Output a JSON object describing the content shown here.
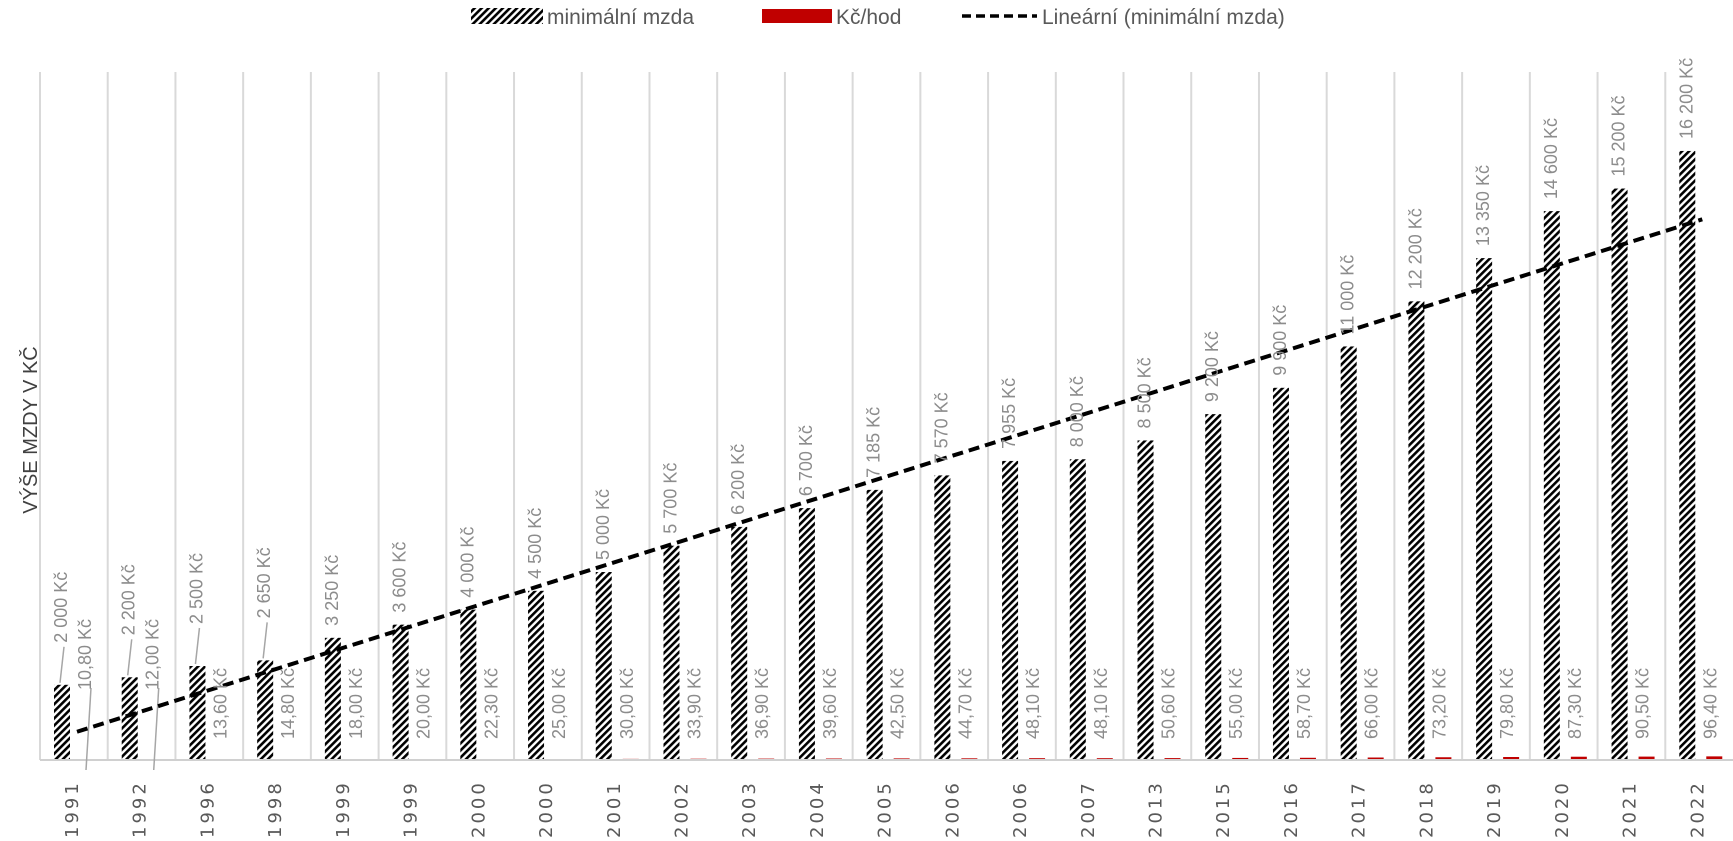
{
  "chart_data": {
    "type": "bar",
    "title": "",
    "xlabel": "",
    "ylabel": "VÝŠE MZDY V KČ",
    "categories": [
      "1991",
      "1992",
      "1996",
      "1998",
      "1999",
      "1999",
      "2000",
      "2000",
      "2001",
      "2002",
      "2003",
      "2004",
      "2005",
      "2006",
      "2006",
      "2007",
      "2013",
      "2015",
      "2016",
      "2017",
      "2018",
      "2019",
      "2020",
      "2021",
      "2022"
    ],
    "series": [
      {
        "name": "minimální mzda",
        "values": [
          2000,
          2200,
          2500,
          2650,
          3250,
          3600,
          4000,
          4500,
          5000,
          5700,
          6200,
          6700,
          7185,
          7570,
          7955,
          8000,
          8500,
          9200,
          9900,
          11000,
          12200,
          13350,
          14600,
          15200,
          16200
        ],
        "labels": [
          "2 000 Kč",
          "2 200 Kč",
          "2 500 Kč",
          "2 650 Kč",
          "3 250 Kč",
          "3 600 Kč",
          "4 000 Kč",
          "4 500 Kč",
          "5 000 Kč",
          "5 700 Kč",
          "6 200 Kč",
          "6 700 Kč",
          "7 185 Kč",
          "7 570 Kč",
          "7 955 Kč",
          "8 000 Kč",
          "8 500 Kč",
          "9 200 Kč",
          "9 900 Kč",
          "11 000 Kč",
          "12 200 Kč",
          "13 350 Kč",
          "14 600 Kč",
          "15 200 Kč",
          "16 200 Kč"
        ],
        "color": "#000000",
        "pattern": "diagonal-hatch"
      },
      {
        "name": "Kč/hod",
        "values": [
          10.8,
          12.0,
          13.6,
          14.8,
          18.0,
          20.0,
          22.3,
          25.0,
          30.0,
          33.9,
          36.9,
          39.6,
          42.5,
          44.7,
          48.1,
          48.1,
          50.6,
          55.0,
          58.7,
          66.0,
          73.2,
          79.8,
          87.3,
          90.5,
          96.4
        ],
        "labels": [
          "10,80 Kč",
          "12,00 Kč",
          "13,60 Kč",
          "14,80 Kč",
          "18,00 Kč",
          "20,00 Kč",
          "22,30 Kč",
          "25,00 Kč",
          "30,00 Kč",
          "33,90 Kč",
          "36,90 Kč",
          "39,60 Kč",
          "42,50 Kč",
          "44,70 Kč",
          "48,10 Kč",
          "48,10 Kč",
          "50,60 Kč",
          "55,00 Kč",
          "58,70 Kč",
          "66,00 Kč",
          "73,20 Kč",
          "79,80 Kč",
          "87,30 Kč",
          "90,50 Kč",
          "96,40 Kč"
        ],
        "color": "#c00000"
      }
    ],
    "trendline": {
      "name": "Lineární (minimální mzda)",
      "type": "linear",
      "of": "minimální mzda",
      "color": "#000000",
      "style": "dashed"
    },
    "ylim": [
      0,
      18300
    ],
    "grid": "vertical",
    "legend": "top"
  }
}
